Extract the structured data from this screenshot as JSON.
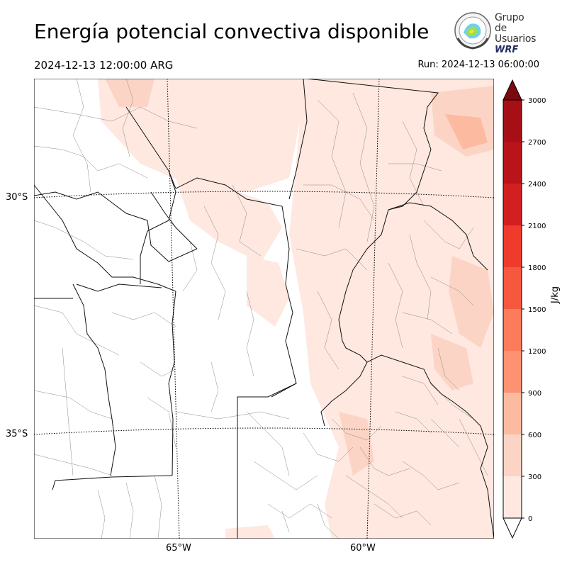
{
  "header": {
    "title": "Energía potencial convectiva disponible",
    "valid_time": "2024-12-13 12:00:00 ARG",
    "run": "Run: 2024-12-13 06:00:00"
  },
  "logo": {
    "line1": "Grupo de",
    "line2": "Usuarios",
    "line3": "WRF"
  },
  "map": {
    "lat_labels": [
      "30°S",
      "35°S"
    ],
    "lon_labels": [
      "65°W",
      "60°W"
    ]
  },
  "colorbar": {
    "unit": "J/kg",
    "ticks": [
      "0",
      "300",
      "600",
      "900",
      "1200",
      "1500",
      "1800",
      "2100",
      "2400",
      "2700",
      "3000"
    ],
    "colors": [
      "#fee8e0",
      "#fcd4c5",
      "#fcbba1",
      "#fc9272",
      "#fb7b5b",
      "#f6583e",
      "#ef3b2c",
      "#d21f21",
      "#b91419",
      "#a50f15",
      "#7b0a10"
    ],
    "over_color": "#67000d",
    "under_color": "#ffffff"
  }
}
